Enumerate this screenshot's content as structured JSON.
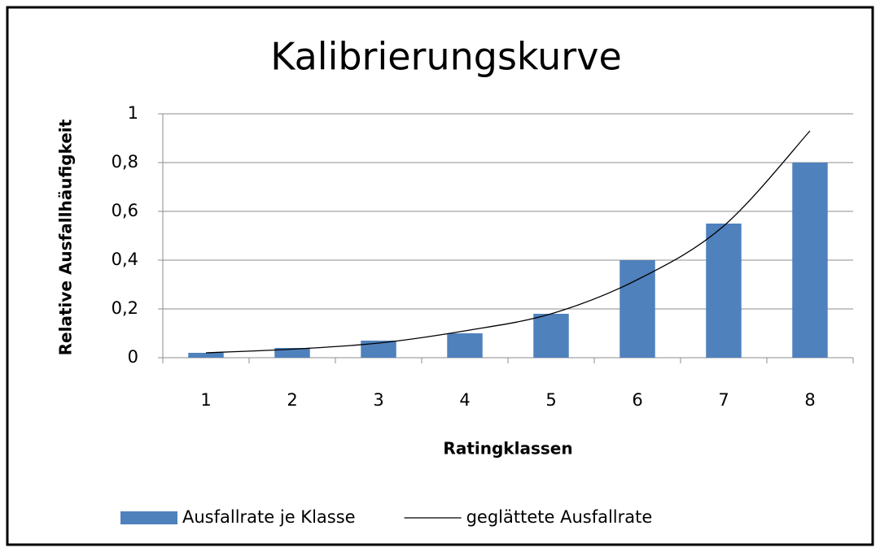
{
  "chart_data": {
    "type": "bar",
    "title": "Kalibrierungskurve",
    "x_label": "Ratingklassen",
    "y_label": "Relative Ausfallhäufigkeit",
    "categories": [
      "1",
      "2",
      "3",
      "4",
      "5",
      "6",
      "7",
      "8"
    ],
    "series": [
      {
        "name": "Ausfallrate je Klasse",
        "type": "bar",
        "color": "#4f81bd",
        "values": [
          0.02,
          0.04,
          0.07,
          0.1,
          0.18,
          0.4,
          0.55,
          0.8
        ]
      },
      {
        "name": "geglättete Ausfallrate",
        "type": "line",
        "color": "#000000",
        "values": [
          0.02,
          0.035,
          0.06,
          0.11,
          0.18,
          0.32,
          0.54,
          0.93
        ]
      }
    ],
    "ylim": [
      0,
      1
    ],
    "yticks": [
      0,
      {
        "value": 0.2,
        "label": "0,2"
      },
      {
        "value": 0.4,
        "label": "0,4"
      },
      {
        "value": 0.6,
        "label": "0,6"
      },
      {
        "value": 0.8,
        "label": "0,8"
      },
      1
    ],
    "grid": true,
    "legend": "bottom"
  }
}
